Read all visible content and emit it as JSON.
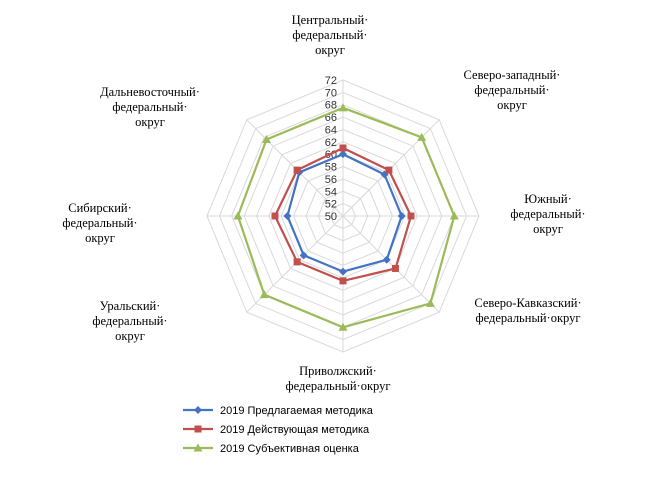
{
  "chart_data": {
    "type": "radar",
    "axes": [
      "Центральный· федеральный· округ",
      "Северо-западный· федеральный· округ",
      "Южный· федеральный· округ",
      "Северо-Кавказский· федеральный·округ",
      "Приволжский· федеральный·округ",
      "Уральский· федеральный· округ",
      "Сибирский· федеральный· округ",
      "Дальневосточный· федеральный· округ"
    ],
    "range": [
      50,
      72
    ],
    "ticks": [
      50,
      52,
      54,
      56,
      58,
      60,
      62,
      64,
      66,
      68,
      70,
      72
    ],
    "grid": true,
    "legend_position": "bottom",
    "series": [
      {
        "name": "2019 Предлагаемая методика",
        "color": "#4472C4",
        "marker": "diamond",
        "values": [
          60,
          59.5,
          59.5,
          60,
          59,
          59,
          59,
          60
        ]
      },
      {
        "name": "2019 Действующая методика",
        "color": "#C0504D",
        "marker": "square",
        "values": [
          61,
          60.5,
          61,
          62,
          60.5,
          60.5,
          61,
          60.5
        ]
      },
      {
        "name": "2019 Субъективная оценка",
        "color": "#9BBB59",
        "marker": "triangle",
        "values": [
          67.5,
          68,
          68,
          70,
          68,
          68,
          67,
          67.5
        ]
      }
    ]
  }
}
